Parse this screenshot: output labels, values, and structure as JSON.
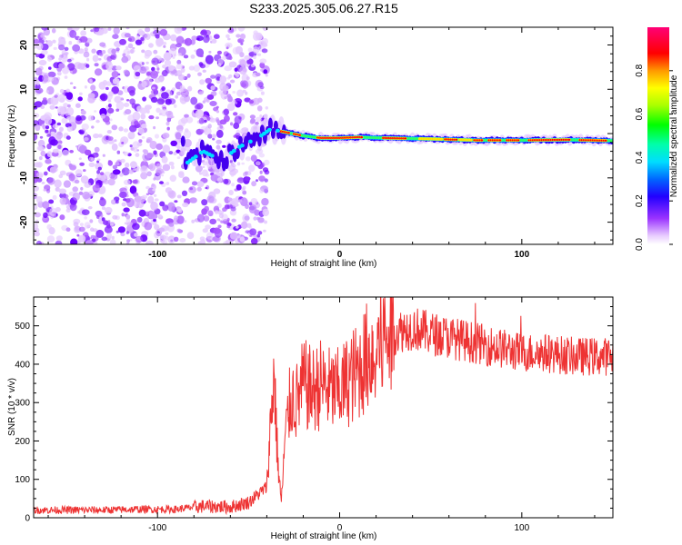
{
  "title": "S233.2025.305.06.27.R15",
  "chart_data": [
    {
      "type": "heatmap",
      "title": "S233.2025.305.06.27.R15",
      "xlabel": "Height of straight line (km)",
      "ylabel": "Frequency (Hz)",
      "xlim": [
        -168,
        150
      ],
      "ylim": [
        -25,
        24
      ],
      "x_ticks": [
        -100,
        0,
        100
      ],
      "x_tick_labels": [
        "-100",
        "0",
        "100"
      ],
      "y_ticks": [
        -20,
        -10,
        0,
        10,
        20
      ],
      "y_tick_labels": [
        "-20",
        "-10",
        "0",
        "10",
        "20"
      ],
      "colorbar": {
        "label": "Normalized spectral amplitude",
        "range": [
          0,
          1
        ],
        "ticks": [
          0,
          0.2,
          0.4,
          0.6,
          0.8
        ],
        "tick_labels": [
          "0.0",
          "0.2",
          "0.4",
          "0.6",
          "0.8"
        ]
      },
      "description_series": [
        {
          "name": "noise_region",
          "x_range": [
            -168,
            -40
          ],
          "amplitude_range": [
            0.0,
            0.2
          ]
        },
        {
          "name": "signal_ridge",
          "x": [
            -85,
            -75,
            -65,
            -55,
            -45,
            -38,
            -32,
            -20,
            -10,
            0,
            10,
            25,
            50,
            75,
            100,
            125,
            150
          ],
          "frequency": [
            -7,
            -4,
            -6,
            -3,
            -1,
            1,
            0.5,
            -0.5,
            -1,
            -1,
            -0.8,
            -1,
            -1.2,
            -1.5,
            -1.5,
            -1.4,
            -1.6
          ]
        }
      ]
    },
    {
      "type": "line",
      "xlabel": "Height of straight line (km)",
      "ylabel": "SNR (10 * v/v)",
      "xlim": [
        -168,
        150
      ],
      "ylim": [
        0,
        575
      ],
      "x_ticks": [
        -100,
        0,
        100
      ],
      "x_tick_labels": [
        "-100",
        "0",
        "100"
      ],
      "y_ticks": [
        0,
        100,
        200,
        300,
        400,
        500
      ],
      "y_tick_labels": [
        "0",
        "100",
        "200",
        "300",
        "400",
        "500"
      ],
      "series": [
        {
          "name": "SNR",
          "color": "#ee3333",
          "x": [
            -168,
            -150,
            -130,
            -110,
            -90,
            -75,
            -60,
            -50,
            -45,
            -40,
            -38,
            -36,
            -34,
            -32,
            -30,
            -28,
            -26,
            -24,
            -22,
            -20,
            -15,
            -10,
            -5,
            0,
            5,
            10,
            15,
            20,
            25,
            30,
            35,
            40,
            50,
            60,
            70,
            80,
            90,
            100,
            110,
            120,
            130,
            140,
            150
          ],
          "values": [
            20,
            20,
            20,
            22,
            22,
            30,
            28,
            40,
            60,
            80,
            240,
            380,
            150,
            40,
            200,
            280,
            320,
            300,
            320,
            350,
            330,
            350,
            330,
            330,
            360,
            380,
            420,
            440,
            470,
            480,
            490,
            495,
            480,
            470,
            460,
            450,
            440,
            430,
            430,
            425,
            420,
            420,
            420
          ]
        }
      ]
    }
  ]
}
